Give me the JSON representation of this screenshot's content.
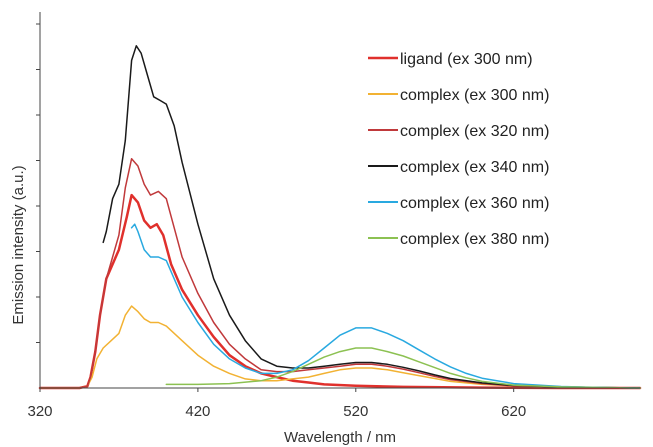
{
  "chart_data": {
    "type": "line",
    "xlabel": "Wavelength / nm",
    "ylabel": "Emission intensity (a.u.)",
    "xlim": [
      320,
      700
    ],
    "ylim": [
      0,
      1
    ],
    "x_ticks": [
      320,
      420,
      520,
      620
    ],
    "y_tick_count": 8,
    "legend_position": "top-right",
    "series": [
      {
        "name": "ligand (ex 300 nm)",
        "color": "#e0302c",
        "linewidth": 2.5,
        "points": [
          [
            320,
            0
          ],
          [
            345,
            0
          ],
          [
            350,
            0.005
          ],
          [
            352,
            0.03
          ],
          [
            355,
            0.1
          ],
          [
            358,
            0.2
          ],
          [
            362,
            0.3
          ],
          [
            366,
            0.34
          ],
          [
            370,
            0.38
          ],
          [
            375,
            0.47
          ],
          [
            378,
            0.53
          ],
          [
            382,
            0.51
          ],
          [
            386,
            0.46
          ],
          [
            390,
            0.44
          ],
          [
            394,
            0.45
          ],
          [
            398,
            0.42
          ],
          [
            403,
            0.34
          ],
          [
            410,
            0.27
          ],
          [
            420,
            0.2
          ],
          [
            430,
            0.14
          ],
          [
            440,
            0.09
          ],
          [
            450,
            0.06
          ],
          [
            460,
            0.04
          ],
          [
            470,
            0.03
          ],
          [
            480,
            0.02
          ],
          [
            490,
            0.015
          ],
          [
            500,
            0.01
          ],
          [
            520,
            0.006
          ],
          [
            550,
            0.003
          ],
          [
            600,
            0.001
          ],
          [
            650,
            0
          ],
          [
            700,
            0
          ]
        ]
      },
      {
        "name": "complex (ex 300 nm)",
        "color": "#f2b233",
        "linewidth": 1.5,
        "points": [
          [
            320,
            0
          ],
          [
            345,
            0
          ],
          [
            350,
            0.005
          ],
          [
            353,
            0.03
          ],
          [
            356,
            0.08
          ],
          [
            360,
            0.11
          ],
          [
            365,
            0.13
          ],
          [
            370,
            0.15
          ],
          [
            374,
            0.2
          ],
          [
            378,
            0.225
          ],
          [
            382,
            0.21
          ],
          [
            386,
            0.19
          ],
          [
            390,
            0.18
          ],
          [
            395,
            0.18
          ],
          [
            400,
            0.17
          ],
          [
            410,
            0.13
          ],
          [
            420,
            0.09
          ],
          [
            430,
            0.06
          ],
          [
            440,
            0.04
          ],
          [
            450,
            0.025
          ],
          [
            460,
            0.02
          ],
          [
            470,
            0.02
          ],
          [
            480,
            0.025
          ],
          [
            490,
            0.03
          ],
          [
            500,
            0.04
          ],
          [
            510,
            0.05
          ],
          [
            520,
            0.055
          ],
          [
            530,
            0.055
          ],
          [
            540,
            0.05
          ],
          [
            550,
            0.042
          ],
          [
            560,
            0.034
          ],
          [
            570,
            0.026
          ],
          [
            580,
            0.018
          ],
          [
            600,
            0.01
          ],
          [
            620,
            0.006
          ],
          [
            650,
            0.002
          ],
          [
            680,
            0.001
          ],
          [
            700,
            0
          ]
        ]
      },
      {
        "name": "complex (ex 320 nm)",
        "color": "#c0393b",
        "linewidth": 1.5,
        "points": [
          [
            320,
            0
          ],
          [
            345,
            0
          ],
          [
            350,
            0.005
          ],
          [
            352,
            0.03
          ],
          [
            355,
            0.1
          ],
          [
            358,
            0.2
          ],
          [
            362,
            0.3
          ],
          [
            366,
            0.36
          ],
          [
            370,
            0.42
          ],
          [
            374,
            0.55
          ],
          [
            378,
            0.63
          ],
          [
            382,
            0.61
          ],
          [
            386,
            0.56
          ],
          [
            390,
            0.53
          ],
          [
            395,
            0.54
          ],
          [
            400,
            0.52
          ],
          [
            405,
            0.44
          ],
          [
            410,
            0.36
          ],
          [
            420,
            0.26
          ],
          [
            430,
            0.18
          ],
          [
            440,
            0.12
          ],
          [
            450,
            0.08
          ],
          [
            460,
            0.05
          ],
          [
            470,
            0.045
          ],
          [
            480,
            0.045
          ],
          [
            490,
            0.05
          ],
          [
            500,
            0.055
          ],
          [
            510,
            0.06
          ],
          [
            520,
            0.065
          ],
          [
            530,
            0.065
          ],
          [
            540,
            0.06
          ],
          [
            550,
            0.052
          ],
          [
            560,
            0.042
          ],
          [
            570,
            0.032
          ],
          [
            580,
            0.023
          ],
          [
            600,
            0.012
          ],
          [
            620,
            0.006
          ],
          [
            650,
            0.002
          ],
          [
            700,
            0
          ]
        ]
      },
      {
        "name": "complex (ex 340 nm)",
        "color": "#1a1a1a",
        "linewidth": 1.5,
        "points": [
          [
            360,
            0.4
          ],
          [
            362,
            0.43
          ],
          [
            366,
            0.52
          ],
          [
            370,
            0.56
          ],
          [
            374,
            0.68
          ],
          [
            378,
            0.9
          ],
          [
            381,
            0.94
          ],
          [
            384,
            0.92
          ],
          [
            388,
            0.86
          ],
          [
            392,
            0.8
          ],
          [
            396,
            0.79
          ],
          [
            400,
            0.78
          ],
          [
            405,
            0.72
          ],
          [
            410,
            0.62
          ],
          [
            420,
            0.45
          ],
          [
            430,
            0.3
          ],
          [
            440,
            0.2
          ],
          [
            450,
            0.13
          ],
          [
            460,
            0.08
          ],
          [
            470,
            0.06
          ],
          [
            480,
            0.055
          ],
          [
            490,
            0.055
          ],
          [
            500,
            0.06
          ],
          [
            510,
            0.065
          ],
          [
            520,
            0.07
          ],
          [
            530,
            0.07
          ],
          [
            540,
            0.065
          ],
          [
            550,
            0.057
          ],
          [
            560,
            0.047
          ],
          [
            570,
            0.036
          ],
          [
            580,
            0.026
          ],
          [
            600,
            0.014
          ],
          [
            620,
            0.007
          ],
          [
            650,
            0.003
          ],
          [
            700,
            0
          ]
        ]
      },
      {
        "name": "complex (ex 360 nm)",
        "color": "#29a9e0",
        "linewidth": 1.5,
        "points": [
          [
            378,
            0.44
          ],
          [
            380,
            0.45
          ],
          [
            382,
            0.43
          ],
          [
            386,
            0.38
          ],
          [
            390,
            0.36
          ],
          [
            395,
            0.36
          ],
          [
            400,
            0.35
          ],
          [
            405,
            0.3
          ],
          [
            410,
            0.25
          ],
          [
            420,
            0.18
          ],
          [
            430,
            0.12
          ],
          [
            440,
            0.08
          ],
          [
            450,
            0.055
          ],
          [
            460,
            0.04
          ],
          [
            470,
            0.04
          ],
          [
            480,
            0.05
          ],
          [
            490,
            0.075
          ],
          [
            500,
            0.11
          ],
          [
            510,
            0.145
          ],
          [
            520,
            0.165
          ],
          [
            530,
            0.165
          ],
          [
            540,
            0.15
          ],
          [
            550,
            0.13
          ],
          [
            560,
            0.105
          ],
          [
            570,
            0.08
          ],
          [
            580,
            0.058
          ],
          [
            590,
            0.04
          ],
          [
            600,
            0.027
          ],
          [
            620,
            0.012
          ],
          [
            650,
            0.004
          ],
          [
            680,
            0.001
          ],
          [
            700,
            0
          ]
        ]
      },
      {
        "name": "complex (ex 380 nm)",
        "color": "#8cc152",
        "linewidth": 1.5,
        "points": [
          [
            400,
            0.01
          ],
          [
            410,
            0.01
          ],
          [
            420,
            0.01
          ],
          [
            440,
            0.012
          ],
          [
            460,
            0.02
          ],
          [
            470,
            0.03
          ],
          [
            480,
            0.045
          ],
          [
            490,
            0.065
          ],
          [
            500,
            0.085
          ],
          [
            510,
            0.1
          ],
          [
            520,
            0.11
          ],
          [
            530,
            0.11
          ],
          [
            540,
            0.1
          ],
          [
            550,
            0.088
          ],
          [
            560,
            0.072
          ],
          [
            570,
            0.056
          ],
          [
            580,
            0.04
          ],
          [
            590,
            0.028
          ],
          [
            600,
            0.018
          ],
          [
            620,
            0.008
          ],
          [
            650,
            0.003
          ],
          [
            700,
            0
          ]
        ]
      }
    ]
  }
}
